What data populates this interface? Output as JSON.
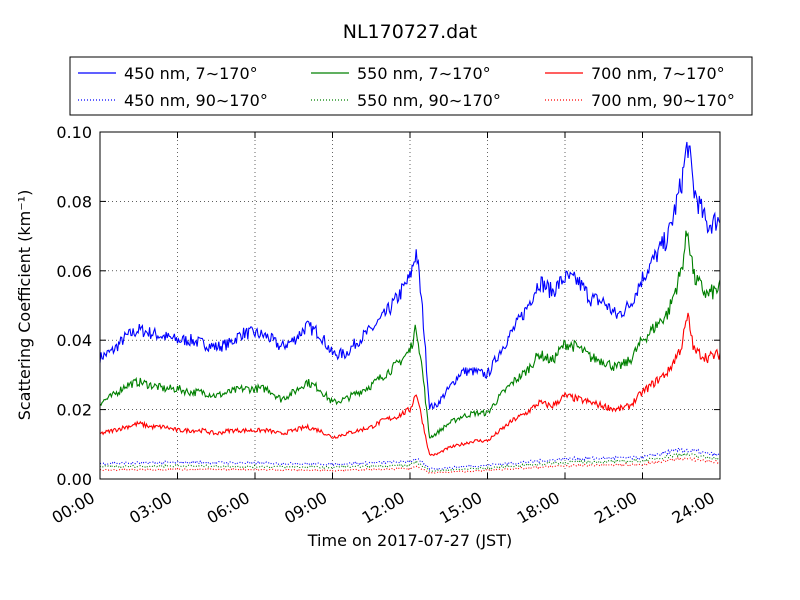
{
  "chart_data": {
    "type": "line",
    "title": "NL170727.dat",
    "xlabel": "Time on 2017-07-27 (JST)",
    "ylabel": "Scattering Coefficient (km⁻¹)",
    "xlim": [
      "00:00",
      "24:00"
    ],
    "ylim": [
      0.0,
      0.1
    ],
    "x_ticks": [
      "00:00",
      "03:00",
      "06:00",
      "09:00",
      "12:00",
      "15:00",
      "18:00",
      "21:00",
      "24:00"
    ],
    "y_ticks": [
      "0.00",
      "0.02",
      "0.04",
      "0.06",
      "0.08",
      "0.10"
    ],
    "grid": true,
    "legend_position": "top-center",
    "series": [
      {
        "name": "450 nm, 7∼170°",
        "color": "#0000ff",
        "style": "solid",
        "x": [
          "00:00",
          "00:30",
          "01:00",
          "01:30",
          "02:00",
          "02:30",
          "03:00",
          "03:30",
          "04:00",
          "04:30",
          "05:00",
          "05:30",
          "06:00",
          "06:30",
          "07:00",
          "07:30",
          "08:00",
          "08:30",
          "09:00",
          "09:30",
          "10:00",
          "10:30",
          "11:00",
          "11:30",
          "12:00",
          "12:15",
          "12:30",
          "12:45",
          "13:00",
          "13:30",
          "14:00",
          "14:30",
          "15:00",
          "15:30",
          "16:00",
          "16:30",
          "17:00",
          "17:30",
          "18:00",
          "18:30",
          "19:00",
          "19:30",
          "20:00",
          "20:30",
          "21:00",
          "21:30",
          "22:00",
          "22:30",
          "22:45",
          "23:00",
          "23:30",
          "24:00"
        ],
        "values": [
          0.035,
          0.037,
          0.041,
          0.043,
          0.042,
          0.041,
          0.04,
          0.04,
          0.039,
          0.038,
          0.039,
          0.042,
          0.042,
          0.041,
          0.038,
          0.04,
          0.044,
          0.042,
          0.036,
          0.036,
          0.04,
          0.043,
          0.047,
          0.052,
          0.058,
          0.066,
          0.047,
          0.021,
          0.021,
          0.026,
          0.031,
          0.031,
          0.03,
          0.037,
          0.043,
          0.049,
          0.057,
          0.054,
          0.058,
          0.057,
          0.052,
          0.051,
          0.047,
          0.05,
          0.058,
          0.064,
          0.07,
          0.085,
          0.097,
          0.083,
          0.073,
          0.075
        ]
      },
      {
        "name": "550 nm, 7∼170°",
        "color": "#008000",
        "style": "solid",
        "x": [
          "00:00",
          "00:30",
          "01:00",
          "01:30",
          "02:00",
          "02:30",
          "03:00",
          "03:30",
          "04:00",
          "04:30",
          "05:00",
          "05:30",
          "06:00",
          "06:30",
          "07:00",
          "07:30",
          "08:00",
          "08:30",
          "09:00",
          "09:30",
          "10:00",
          "10:30",
          "11:00",
          "11:30",
          "12:00",
          "12:15",
          "12:30",
          "12:45",
          "13:00",
          "13:30",
          "14:00",
          "14:30",
          "15:00",
          "15:30",
          "16:00",
          "16:30",
          "17:00",
          "17:30",
          "18:00",
          "18:30",
          "19:00",
          "19:30",
          "20:00",
          "20:30",
          "21:00",
          "21:30",
          "22:00",
          "22:30",
          "22:45",
          "23:00",
          "23:30",
          "24:00"
        ],
        "values": [
          0.022,
          0.024,
          0.027,
          0.028,
          0.027,
          0.026,
          0.026,
          0.025,
          0.025,
          0.024,
          0.025,
          0.026,
          0.026,
          0.026,
          0.023,
          0.025,
          0.028,
          0.026,
          0.022,
          0.023,
          0.025,
          0.027,
          0.03,
          0.033,
          0.037,
          0.044,
          0.03,
          0.012,
          0.013,
          0.016,
          0.018,
          0.019,
          0.019,
          0.024,
          0.028,
          0.031,
          0.036,
          0.034,
          0.039,
          0.038,
          0.035,
          0.034,
          0.032,
          0.034,
          0.04,
          0.044,
          0.048,
          0.06,
          0.072,
          0.058,
          0.053,
          0.055
        ]
      },
      {
        "name": "700 nm, 7∼170°",
        "color": "#ff0000",
        "style": "solid",
        "x": [
          "00:00",
          "00:30",
          "01:00",
          "01:30",
          "02:00",
          "02:30",
          "03:00",
          "03:30",
          "04:00",
          "04:30",
          "05:00",
          "05:30",
          "06:00",
          "06:30",
          "07:00",
          "07:30",
          "08:00",
          "08:30",
          "09:00",
          "09:30",
          "10:00",
          "10:30",
          "11:00",
          "11:30",
          "12:00",
          "12:15",
          "12:30",
          "12:45",
          "13:00",
          "13:30",
          "14:00",
          "14:30",
          "15:00",
          "15:30",
          "16:00",
          "16:30",
          "17:00",
          "17:30",
          "18:00",
          "18:30",
          "19:00",
          "19:30",
          "20:00",
          "20:30",
          "21:00",
          "21:30",
          "22:00",
          "22:30",
          "22:45",
          "23:00",
          "23:30",
          "24:00"
        ],
        "values": [
          0.013,
          0.014,
          0.015,
          0.016,
          0.015,
          0.015,
          0.014,
          0.014,
          0.014,
          0.013,
          0.014,
          0.014,
          0.014,
          0.014,
          0.013,
          0.014,
          0.015,
          0.014,
          0.012,
          0.013,
          0.014,
          0.015,
          0.017,
          0.018,
          0.02,
          0.025,
          0.016,
          0.007,
          0.007,
          0.009,
          0.01,
          0.011,
          0.011,
          0.014,
          0.017,
          0.019,
          0.022,
          0.021,
          0.024,
          0.023,
          0.022,
          0.021,
          0.02,
          0.021,
          0.025,
          0.028,
          0.031,
          0.038,
          0.047,
          0.037,
          0.035,
          0.036
        ]
      },
      {
        "name": "450 nm, 90∼170°",
        "color": "#0000ff",
        "style": "dotted",
        "x": [
          "00:00",
          "03:00",
          "06:00",
          "09:00",
          "12:00",
          "12:15",
          "12:45",
          "13:00",
          "15:00",
          "18:00",
          "21:00",
          "22:30",
          "24:00"
        ],
        "values": [
          0.0045,
          0.0048,
          0.0046,
          0.0043,
          0.005,
          0.006,
          0.003,
          0.003,
          0.004,
          0.0058,
          0.0062,
          0.0085,
          0.0068
        ]
      },
      {
        "name": "550 nm, 90∼170°",
        "color": "#008000",
        "style": "dotted",
        "x": [
          "00:00",
          "03:00",
          "06:00",
          "09:00",
          "12:00",
          "12:15",
          "12:45",
          "13:00",
          "15:00",
          "18:00",
          "21:00",
          "22:30",
          "24:00"
        ],
        "values": [
          0.0035,
          0.0038,
          0.0036,
          0.0034,
          0.004,
          0.005,
          0.0024,
          0.0024,
          0.0032,
          0.0048,
          0.0052,
          0.0072,
          0.0058
        ]
      },
      {
        "name": "700 nm, 90∼170°",
        "color": "#ff0000",
        "style": "dotted",
        "x": [
          "00:00",
          "03:00",
          "06:00",
          "09:00",
          "12:00",
          "12:15",
          "12:45",
          "13:00",
          "15:00",
          "18:00",
          "21:00",
          "22:30",
          "24:00"
        ],
        "values": [
          0.0026,
          0.0028,
          0.0027,
          0.0025,
          0.003,
          0.0038,
          0.0018,
          0.0018,
          0.0025,
          0.0038,
          0.0042,
          0.006,
          0.0048
        ]
      }
    ]
  }
}
